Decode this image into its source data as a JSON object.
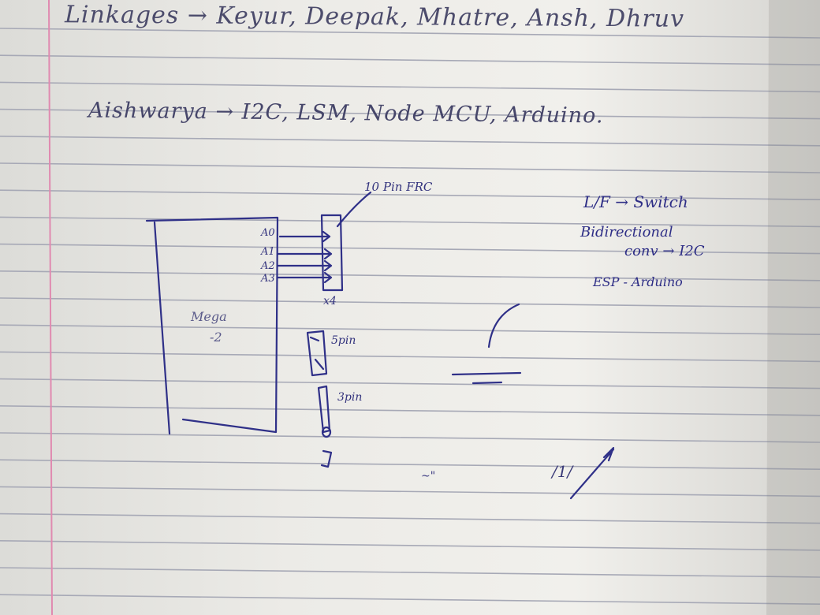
{
  "colors": {
    "paper": "#efeeea",
    "rule_line": "#a7a9b6",
    "margin_line": "#e08ab0",
    "ink": "#2f3088"
  },
  "notes": {
    "line1": "Linkages → Keyur, Deepak, Mhatre, Ansh, Dhruv",
    "line2": "Aishwarya → I2C, LSM, Node MCU, Arduino.",
    "right_note_1": "L/F → Switch",
    "right_note_2": "Bidirectional",
    "right_note_3": "conv → I2C",
    "right_note_4": "ESP - Arduino"
  },
  "diagram": {
    "connector_label": "10 Pin FRC",
    "pins": [
      "A0",
      "A1",
      "A2",
      "A3"
    ],
    "multiplier": "x4",
    "board_label_1": "Mega",
    "board_label_2": "-2",
    "five_pin_label": "5pin",
    "three_pin_label": "3pin",
    "misc_mark_1": "~\"",
    "misc_mark_2": "/1/"
  }
}
